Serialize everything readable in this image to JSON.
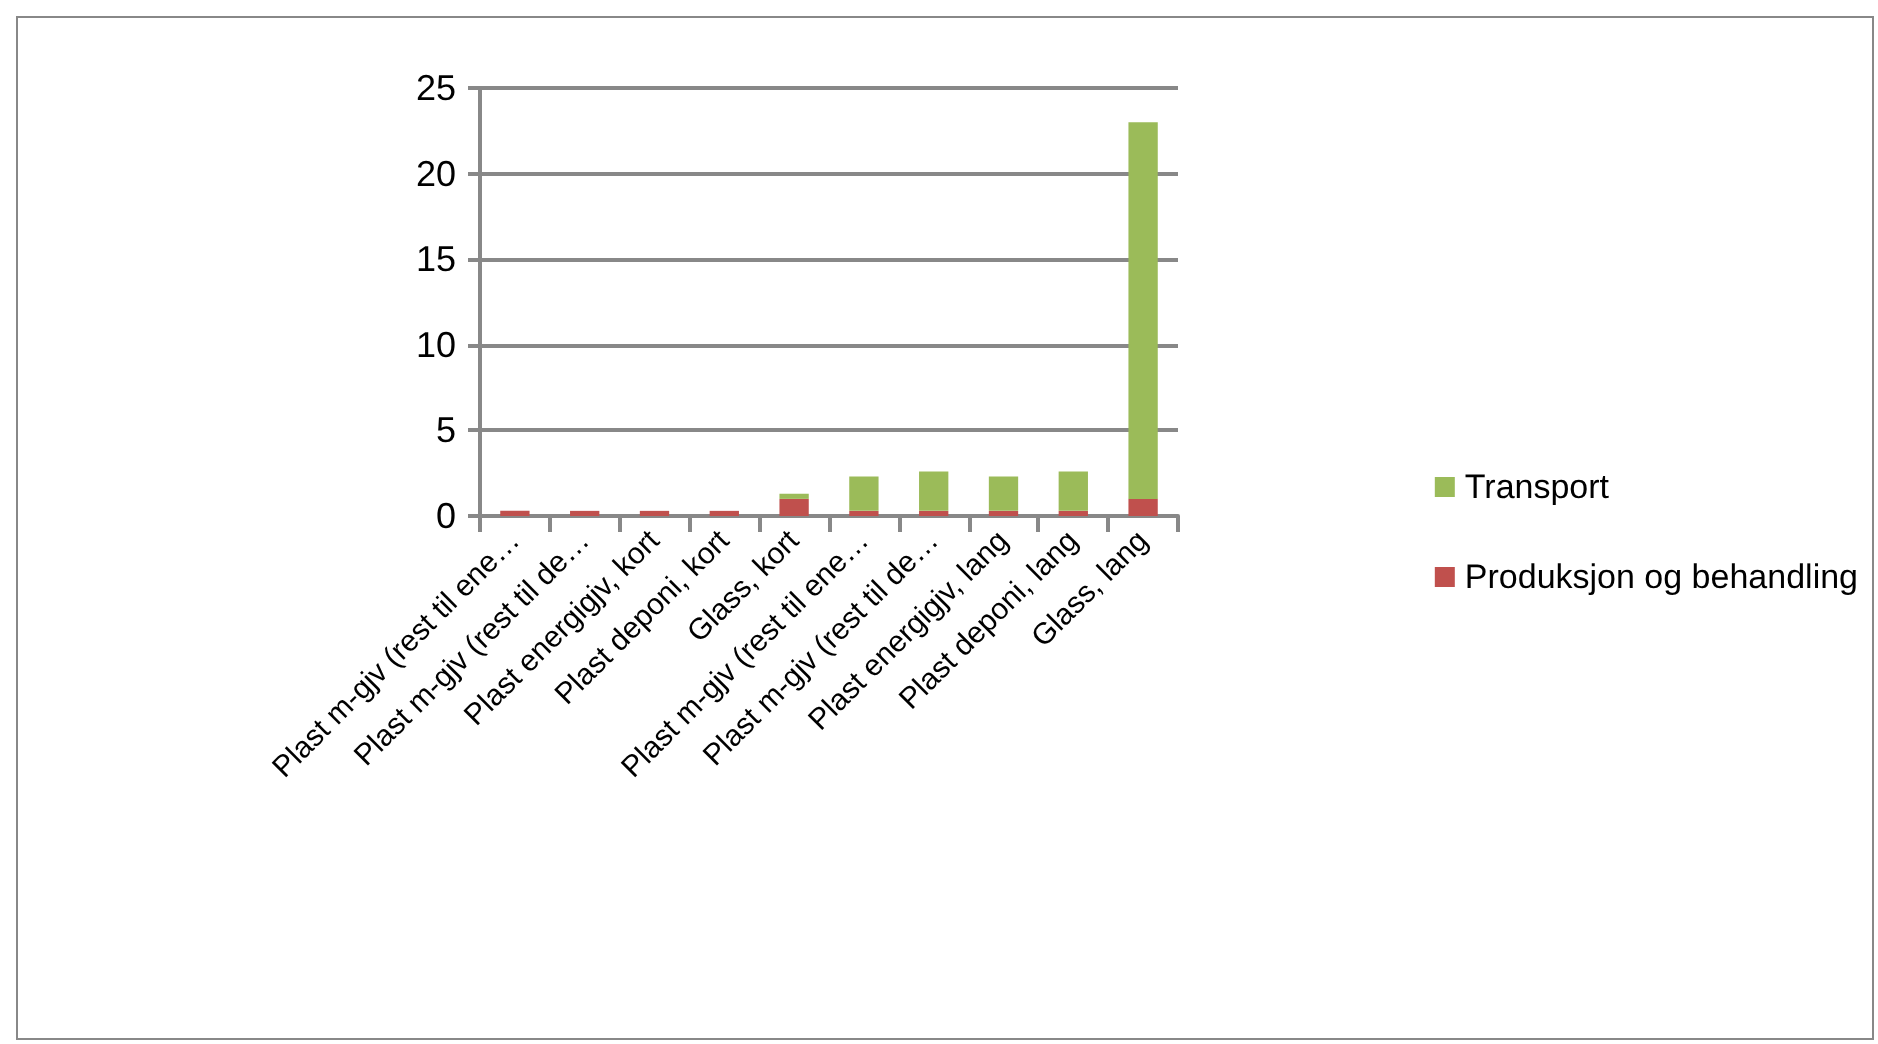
{
  "chart_data": {
    "type": "bar",
    "stacked": true,
    "categories": [
      "Plast m-gjv (rest til ene…",
      "Plast m-gjv (rest til de…",
      "Plast energigjv, kort",
      "Plast deponi, kort",
      "Glass, kort",
      "Plast m-gjv (rest til ene…",
      "Plast m-gjv (rest til de…",
      "Plast energigjv, lang",
      "Plast deponi, lang",
      "Glass, lang"
    ],
    "series": [
      {
        "name": "Produksjon og behandling",
        "color": "#c0504d",
        "values": [
          0.3,
          0.3,
          0.3,
          0.3,
          1,
          0.3,
          0.3,
          0.3,
          0.3,
          1
        ]
      },
      {
        "name": "Transport",
        "color": "#9bbb59",
        "values": [
          0,
          0,
          0,
          0,
          0.3,
          2,
          2.3,
          2,
          2.3,
          22
        ]
      }
    ],
    "ylim": [
      0,
      25
    ],
    "yticks": [
      0,
      5,
      10,
      15,
      20,
      25
    ],
    "grid": "y",
    "legend": "right"
  }
}
